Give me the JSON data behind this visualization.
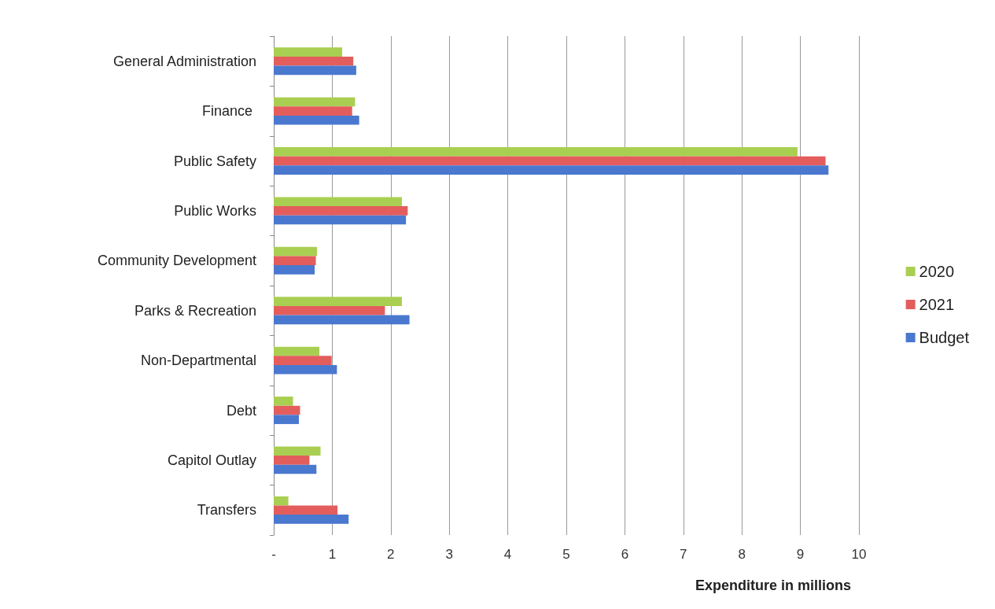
{
  "chart_data": {
    "type": "bar",
    "orientation": "horizontal",
    "xlabel": "Expenditure in millions",
    "categories": [
      "General Administration",
      "Finance ",
      "Public Safety",
      "Public Works",
      "Community Development",
      "Parks & Recreation",
      "Non-Departmental",
      "Debt",
      "Capitol Outlay",
      "Transfers"
    ],
    "series": [
      {
        "name": "2020",
        "color": "#a9cf52",
        "values": [
          1.17,
          1.39,
          8.95,
          2.19,
          0.74,
          2.19,
          0.78,
          0.33,
          0.8,
          0.25
        ]
      },
      {
        "name": "2021",
        "color": "#e35d5d",
        "values": [
          1.36,
          1.34,
          9.43,
          2.29,
          0.72,
          1.9,
          0.99,
          0.45,
          0.61,
          1.09
        ]
      },
      {
        "name": "Budget",
        "color": "#4a78cf",
        "values": [
          1.41,
          1.46,
          9.48,
          2.26,
          0.7,
          2.32,
          1.08,
          0.43,
          0.73,
          1.28
        ]
      }
    ],
    "xlim": [
      0,
      10
    ],
    "xticks": [
      {
        "value": 0,
        "label": "-"
      },
      1,
      2,
      3,
      4,
      5,
      6,
      7,
      8,
      9,
      10
    ],
    "grid": "x",
    "legend": "right"
  }
}
